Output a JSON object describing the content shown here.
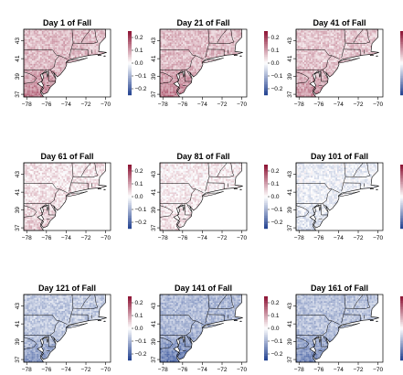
{
  "colors": {
    "negative": "#1f3f8f",
    "neutral": "#ffffff",
    "positive": "#8a0d2f",
    "state_border": "#000000",
    "water": "#ffffff"
  },
  "colorbar": {
    "ticks": [
      0.2,
      0.1,
      0.0,
      -0.1,
      -0.2
    ],
    "tick_labels": [
      "0.2",
      "0.1",
      "0.0",
      "−0.1",
      "−0.2"
    ],
    "range": [
      -0.25,
      0.25
    ]
  },
  "chart_data": [
    {
      "type": "heatmap",
      "title": "Day 1 of Fall",
      "x_ticks": [
        -78,
        -76,
        -74,
        -72,
        -70
      ],
      "y_ticks": [
        37,
        39,
        41,
        43
      ],
      "xlim": [
        -78.3,
        -69.5
      ],
      "ylim": [
        36.7,
        44.3
      ],
      "zlim": [
        -0.25,
        0.25
      ],
      "approx_mean": 0.07,
      "pattern": "mostly light red (positive) across land, stronger red in south"
    },
    {
      "type": "heatmap",
      "title": "Day 21 of Fall",
      "x_ticks": [
        -78,
        -76,
        -74,
        -72,
        -70
      ],
      "y_ticks": [
        37,
        39,
        41,
        43
      ],
      "xlim": [
        -78.3,
        -69.5
      ],
      "ylim": [
        36.7,
        44.3
      ],
      "zlim": [
        -0.25,
        0.25
      ],
      "approx_mean": 0.07,
      "pattern": "mostly light red (positive) across land"
    },
    {
      "type": "heatmap",
      "title": "Day 41 of Fall",
      "x_ticks": [
        -78,
        -76,
        -74,
        -72,
        -70
      ],
      "y_ticks": [
        37,
        39,
        41,
        43
      ],
      "xlim": [
        -78.3,
        -69.5
      ],
      "ylim": [
        36.7,
        44.3
      ],
      "zlim": [
        -0.25,
        0.25
      ],
      "approx_mean": 0.06,
      "pattern": "light red (positive) across land"
    },
    {
      "type": "heatmap",
      "title": "Day 61 of Fall",
      "x_ticks": [
        -78,
        -76,
        -74,
        -72,
        -70
      ],
      "y_ticks": [
        37,
        39,
        41,
        43
      ],
      "xlim": [
        -78.3,
        -69.5
      ],
      "ylim": [
        36.7,
        44.3
      ],
      "zlim": [
        -0.25,
        0.25
      ],
      "approx_mean": 0.03,
      "pattern": "faint red in north, stronger red along southern coast"
    },
    {
      "type": "heatmap",
      "title": "Day 81 of Fall",
      "x_ticks": [
        -78,
        -76,
        -74,
        -72,
        -70
      ],
      "y_ticks": [
        37,
        39,
        41,
        43
      ],
      "xlim": [
        -78.3,
        -69.5
      ],
      "ylim": [
        36.7,
        44.3
      ],
      "zlim": [
        -0.25,
        0.25
      ],
      "approx_mean": 0.02,
      "pattern": "faint red, stronger red along southern coast"
    },
    {
      "type": "heatmap",
      "title": "Day 101 of Fall",
      "x_ticks": [
        -78,
        -76,
        -74,
        -72,
        -70
      ],
      "y_ticks": [
        37,
        39,
        41,
        43
      ],
      "xlim": [
        -78.3,
        -69.5
      ],
      "ylim": [
        36.7,
        44.3
      ],
      "zlim": [
        -0.25,
        0.25
      ],
      "approx_mean": -0.02,
      "pattern": "faint blue in northwest, red in southern coastal area"
    },
    {
      "type": "heatmap",
      "title": "Day 121 of Fall",
      "x_ticks": [
        -78,
        -76,
        -74,
        -72,
        -70
      ],
      "y_ticks": [
        37,
        39,
        41,
        43
      ],
      "xlim": [
        -78.3,
        -69.5
      ],
      "ylim": [
        36.7,
        44.3
      ],
      "zlim": [
        -0.25,
        0.25
      ],
      "approx_mean": -0.07,
      "pattern": "light blue (negative) across land, darker blue in south-west"
    },
    {
      "type": "heatmap",
      "title": "Day 141 of Fall",
      "x_ticks": [
        -78,
        -76,
        -74,
        -72,
        -70
      ],
      "y_ticks": [
        37,
        39,
        41,
        43
      ],
      "xlim": [
        -78.3,
        -69.5
      ],
      "ylim": [
        36.7,
        44.3
      ],
      "zlim": [
        -0.25,
        0.25
      ],
      "approx_mean": -0.09,
      "pattern": "blue (negative) across land, darker blue in north and south-west"
    },
    {
      "type": "heatmap",
      "title": "Day 161 of Fall",
      "x_ticks": [
        -78,
        -76,
        -74,
        -72,
        -70
      ],
      "y_ticks": [
        37,
        39,
        41,
        43
      ],
      "xlim": [
        -78.3,
        -69.5
      ],
      "ylim": [
        36.7,
        44.3
      ],
      "zlim": [
        -0.25,
        0.25
      ],
      "approx_mean": -0.08,
      "pattern": "blue (negative) across land, darker blue in south-west"
    }
  ]
}
